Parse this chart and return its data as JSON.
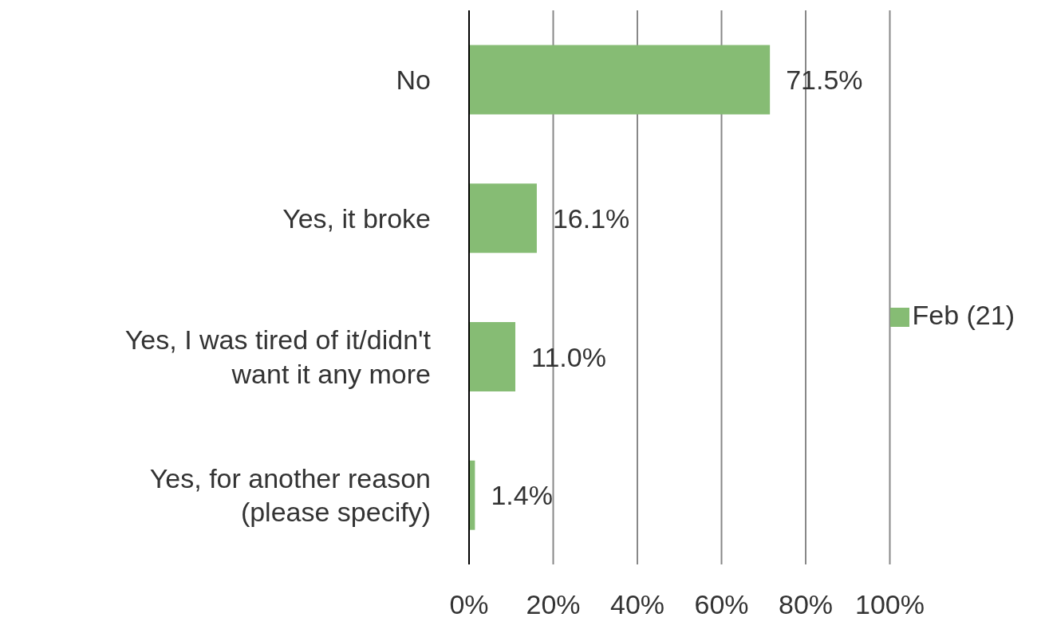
{
  "chart_data": {
    "type": "bar",
    "orientation": "horizontal",
    "categories": [
      "No",
      "Yes, it broke",
      "Yes, I was tired of it/didn't want it any more",
      "Yes, for another reason (please specify)"
    ],
    "series": [
      {
        "name": "Feb (21)",
        "color": "#86bc74",
        "values": [
          71.5,
          16.1,
          11.0,
          1.4
        ],
        "value_labels": [
          "71.5%",
          "16.1%",
          "11.0%",
          "1.4%"
        ]
      }
    ],
    "xlim": [
      0,
      100
    ],
    "xticks": [
      {
        "value": 0,
        "label": "0%"
      },
      {
        "value": 20,
        "label": "20%"
      },
      {
        "value": 40,
        "label": "40%"
      },
      {
        "value": 60,
        "label": "60%"
      },
      {
        "value": 80,
        "label": "80%"
      },
      {
        "value": 100,
        "label": "100%"
      }
    ],
    "grid": "x",
    "legend": "right"
  }
}
